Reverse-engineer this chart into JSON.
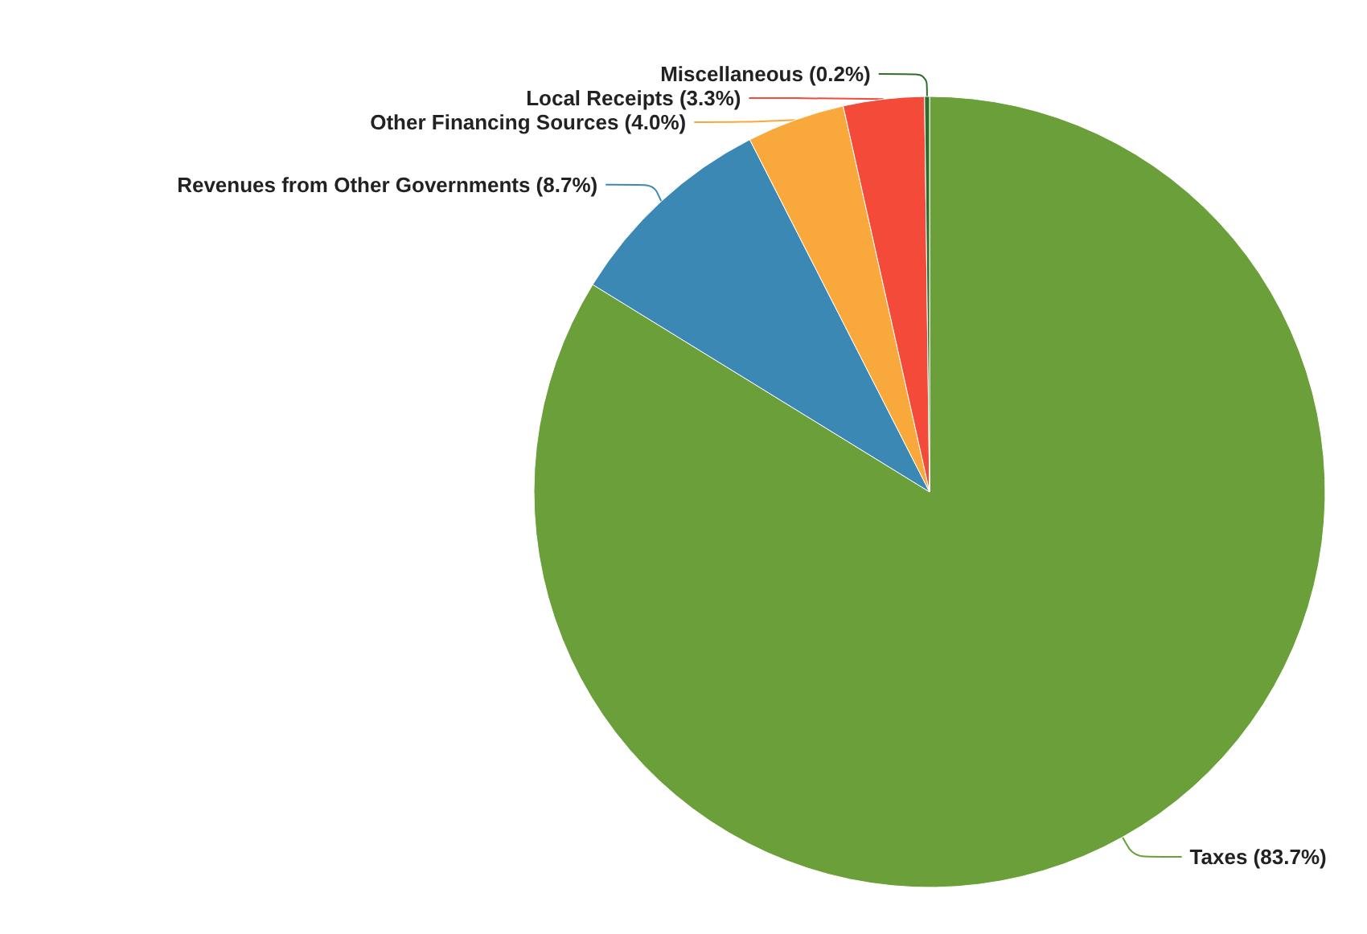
{
  "chart_data": {
    "type": "pie",
    "categories": [
      "Taxes",
      "Revenues from Other Governments",
      "Other Financing Sources",
      "Local Receipts",
      "Miscellaneous"
    ],
    "values": [
      83.7,
      8.7,
      4.0,
      3.3,
      0.2
    ],
    "value_labels": [
      "(83.7%)",
      "(8.7%)",
      "(4.0%)",
      "(3.3%)",
      "(0.2%)"
    ],
    "colors": [
      "#6a9f3a",
      "#3b88b5",
      "#f9a93b",
      "#f44a3a",
      "#2f6e2a"
    ],
    "legend": false
  }
}
